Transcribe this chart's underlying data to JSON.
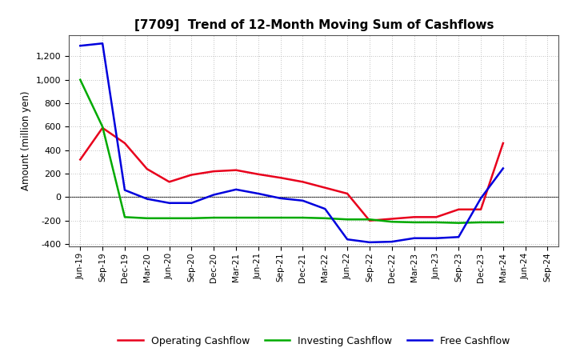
{
  "title": "[7709]  Trend of 12-Month Moving Sum of Cashflows",
  "ylabel": "Amount (million yen)",
  "xlabels": [
    "Jun-19",
    "Sep-19",
    "Dec-19",
    "Mar-20",
    "Jun-20",
    "Sep-20",
    "Dec-20",
    "Mar-21",
    "Jun-21",
    "Sep-21",
    "Dec-21",
    "Mar-22",
    "Jun-22",
    "Sep-22",
    "Dec-22",
    "Mar-23",
    "Jun-23",
    "Sep-23",
    "Dec-23",
    "Mar-24",
    "Jun-24",
    "Sep-24"
  ],
  "operating": [
    320,
    590,
    460,
    240,
    130,
    190,
    220,
    230,
    195,
    165,
    130,
    80,
    30,
    -200,
    -185,
    -170,
    -170,
    -105,
    -105,
    460,
    null,
    null
  ],
  "investing": [
    1000,
    600,
    -170,
    -180,
    -180,
    -180,
    -175,
    -175,
    -175,
    -175,
    -175,
    -180,
    -190,
    -190,
    -210,
    -215,
    -215,
    -220,
    -215,
    -215,
    null,
    null
  ],
  "free": [
    1290,
    1310,
    60,
    -15,
    -50,
    -50,
    20,
    65,
    30,
    -10,
    -30,
    -100,
    -360,
    -385,
    -380,
    -350,
    -350,
    -340,
    -10,
    245,
    null,
    null
  ],
  "ylim": [
    -420,
    1380
  ],
  "yticks": [
    -400,
    -200,
    0,
    200,
    400,
    600,
    800,
    1000,
    1200
  ],
  "colors": {
    "operating": "#e8001c",
    "investing": "#00aa00",
    "free": "#0000dd"
  },
  "legend_labels": [
    "Operating Cashflow",
    "Investing Cashflow",
    "Free Cashflow"
  ],
  "background_color": "#ffffff",
  "grid_color": "#b0b0b0"
}
